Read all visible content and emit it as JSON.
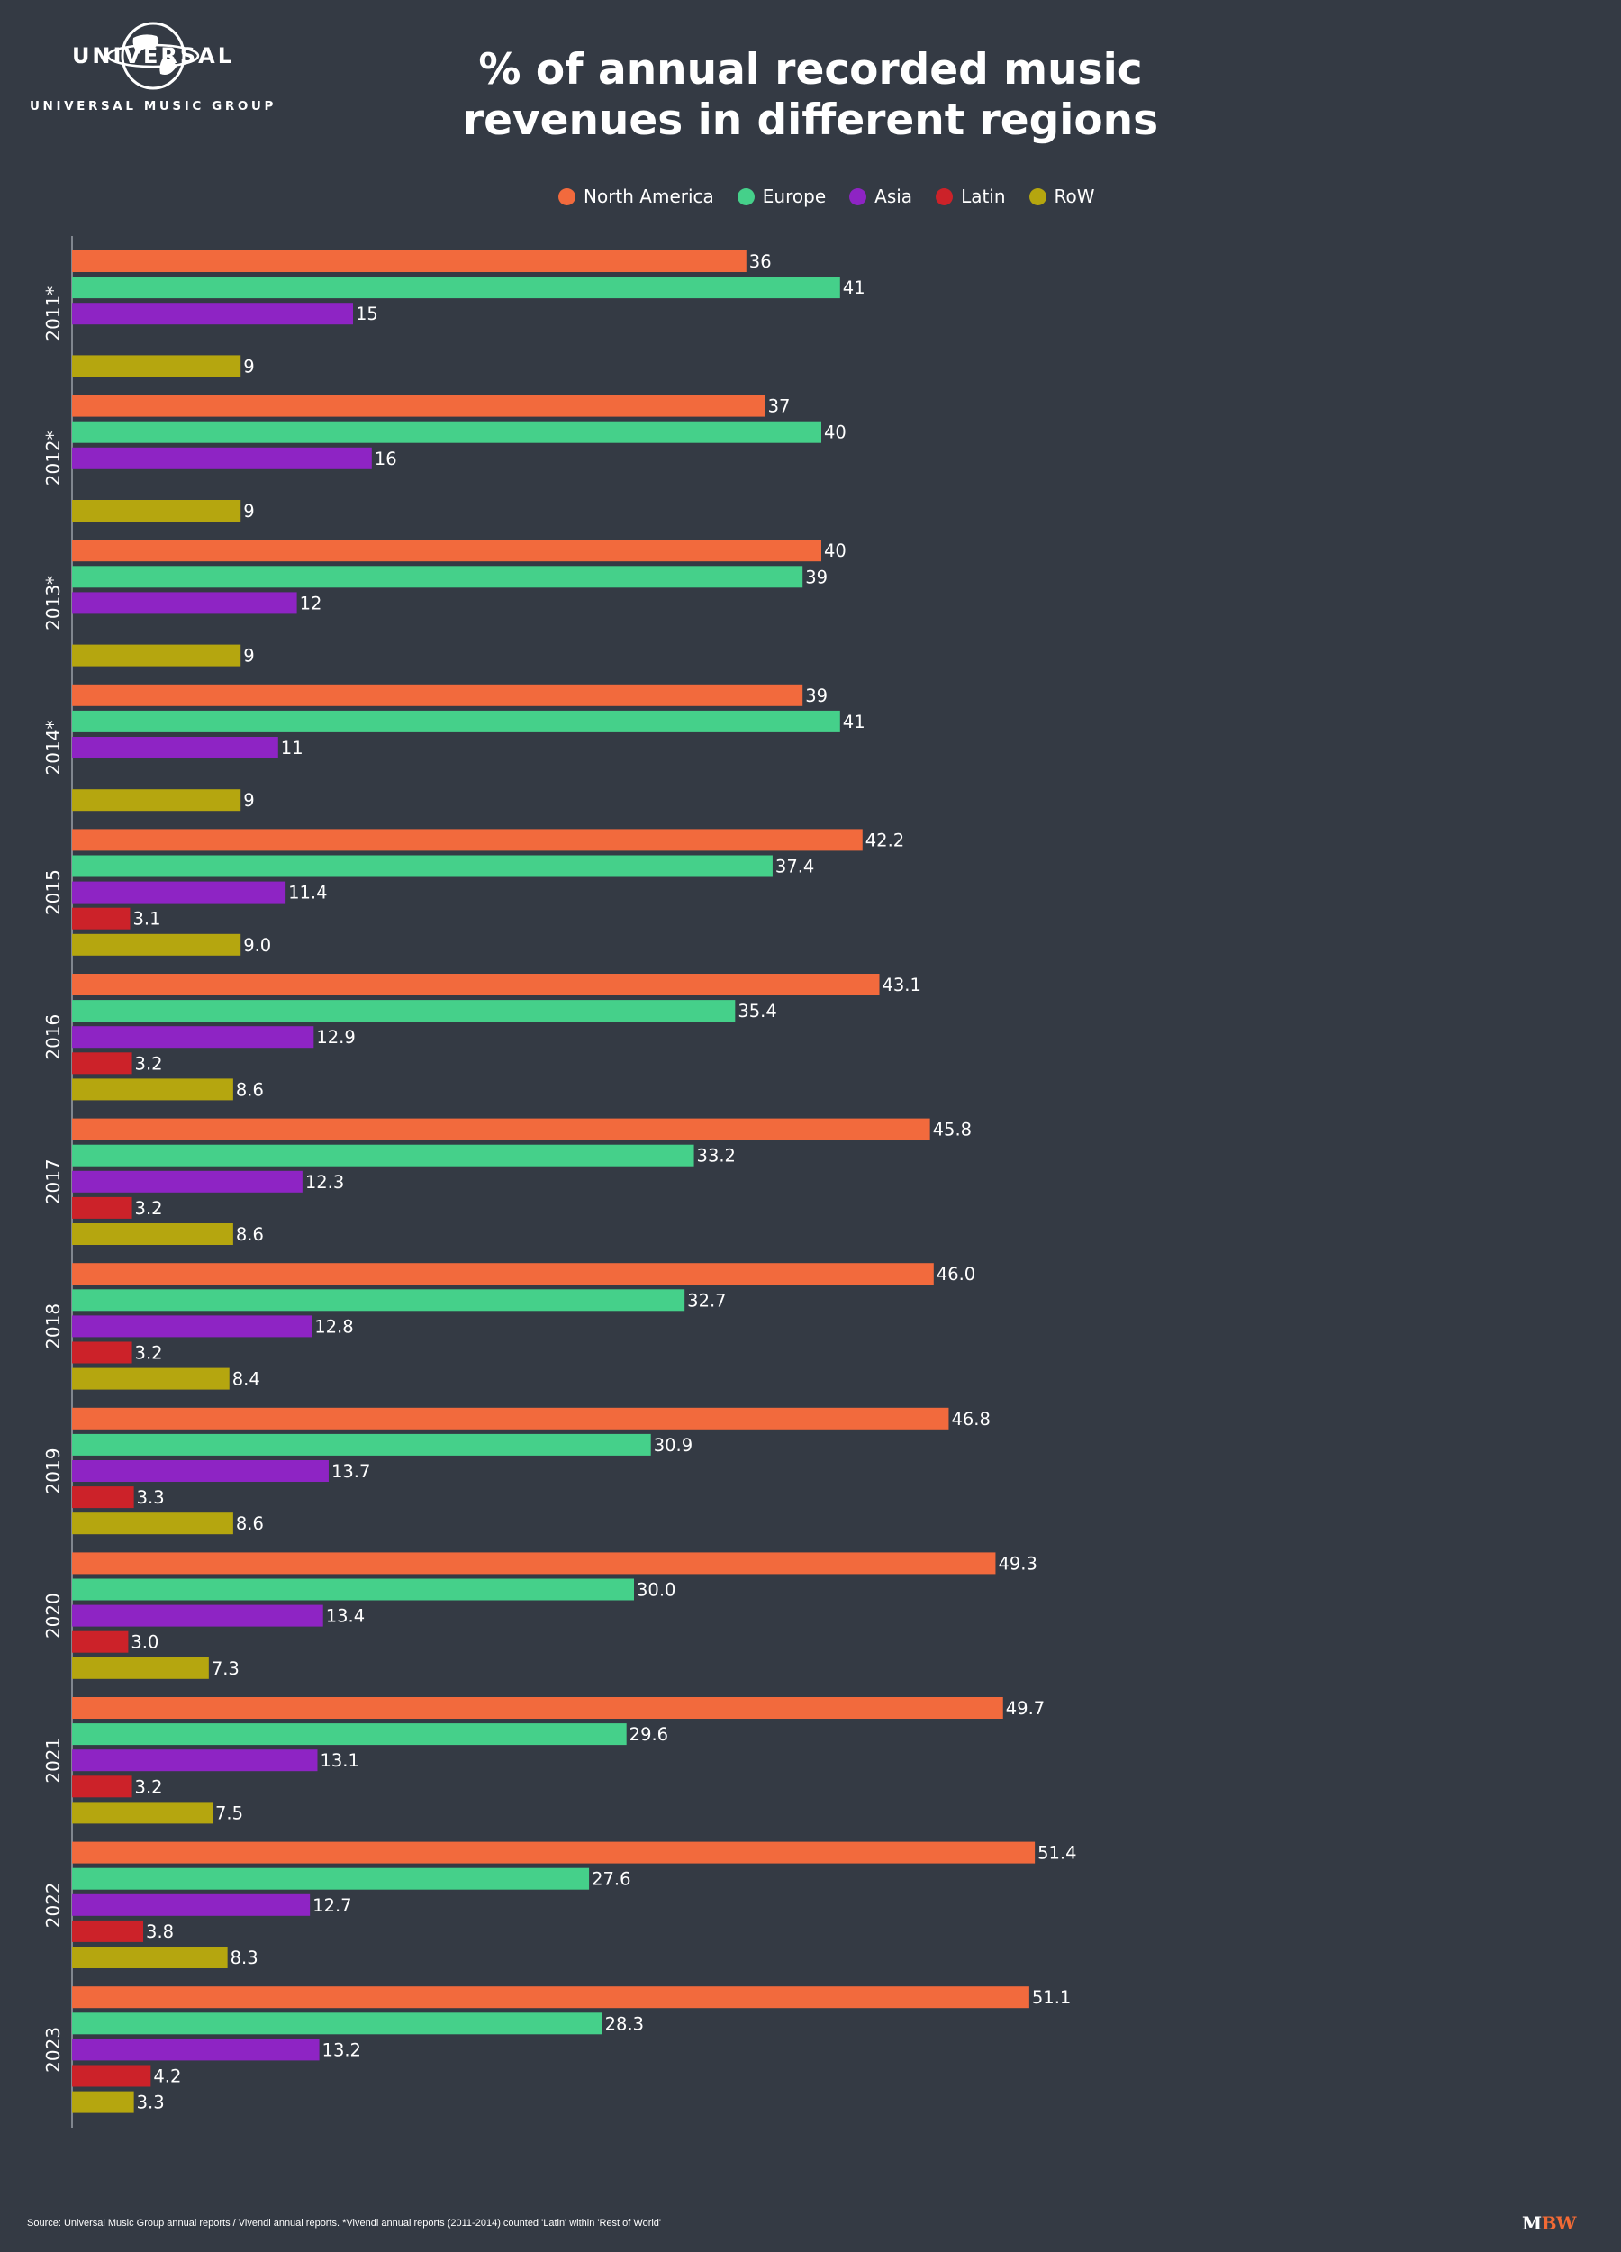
{
  "logo": {
    "wordmark": "UNIVERSAL",
    "subtitle": "UNIVERSAL MUSIC GROUP"
  },
  "footer": {
    "source": "Source: Universal Music Group annual reports / Vivendi annual reports. *Vivendi annual reports (2011-2014) counted 'Latin' within 'Rest of World'",
    "brand_m": "M",
    "brand_bw": "BW"
  },
  "colors": {
    "background": "#343a44",
    "north_america": "#f26a3d",
    "europe": "#45d08a",
    "asia": "#8e24c4",
    "latin": "#cc2229",
    "row": "#b5a60f",
    "brand_orange": "#f26a35"
  },
  "chart_data": {
    "type": "bar",
    "orientation": "horizontal",
    "title": "% of annual recorded music revenues in different regions",
    "title_lines": [
      "% of annual recorded music",
      "revenues in different regions"
    ],
    "categories": [
      "2011*",
      "2012*",
      "2013*",
      "2014*",
      "2015",
      "2016",
      "2017",
      "2018",
      "2019",
      "2020",
      "2021",
      "2022",
      "2023"
    ],
    "series": [
      {
        "name": "North America",
        "color": "#f26a3d",
        "values": [
          36,
          37,
          40,
          39,
          42.2,
          43.1,
          45.8,
          46.0,
          46.8,
          49.3,
          49.7,
          51.4,
          51.1
        ]
      },
      {
        "name": "Europe",
        "color": "#45d08a",
        "values": [
          41,
          40,
          39,
          41,
          37.4,
          35.4,
          33.2,
          32.7,
          30.9,
          30.0,
          29.6,
          27.6,
          28.3
        ]
      },
      {
        "name": "Asia",
        "color": "#8e24c4",
        "values": [
          15,
          16,
          12,
          11,
          11.4,
          12.9,
          12.3,
          12.8,
          13.7,
          13.4,
          13.1,
          12.7,
          13.2
        ]
      },
      {
        "name": "Latin",
        "color": "#cc2229",
        "values": [
          null,
          null,
          null,
          null,
          3.1,
          3.2,
          3.2,
          3.2,
          3.3,
          3.0,
          3.2,
          3.8,
          4.2
        ]
      },
      {
        "name": "RoW",
        "color": "#b5a60f",
        "values": [
          9,
          9,
          9,
          9,
          9.0,
          8.6,
          8.6,
          8.4,
          8.6,
          7.3,
          7.5,
          8.3,
          3.3
        ]
      }
    ],
    "data_labels": [
      [
        "36",
        "37",
        "40",
        "39",
        "42.2",
        "43.1",
        "45.8",
        "46.0",
        "46.8",
        "49.3",
        "49.7",
        "51.4",
        "51.1"
      ],
      [
        "41",
        "40",
        "39",
        "41",
        "37.4",
        "35.4",
        "33.2",
        "32.7",
        "30.9",
        "30.0",
        "29.6",
        "27.6",
        "28.3"
      ],
      [
        "15",
        "16",
        "12",
        "11",
        "11.4",
        "12.9",
        "12.3",
        "12.8",
        "13.7",
        "13.4",
        "13.1",
        "12.7",
        "13.2"
      ],
      [
        "",
        "",
        "",
        "",
        "3.1",
        "3.2",
        "3.2",
        "3.2",
        "3.3",
        "3.0",
        "3.2",
        "3.8",
        "4.2"
      ],
      [
        "9",
        "9",
        "9",
        "9",
        "9.0",
        "8.6",
        "8.6",
        "8.4",
        "8.6",
        "7.3",
        "7.5",
        "8.3",
        "3.3"
      ]
    ],
    "xlim": [
      0,
      100
    ],
    "grid": false,
    "legend_position": "top-center"
  }
}
